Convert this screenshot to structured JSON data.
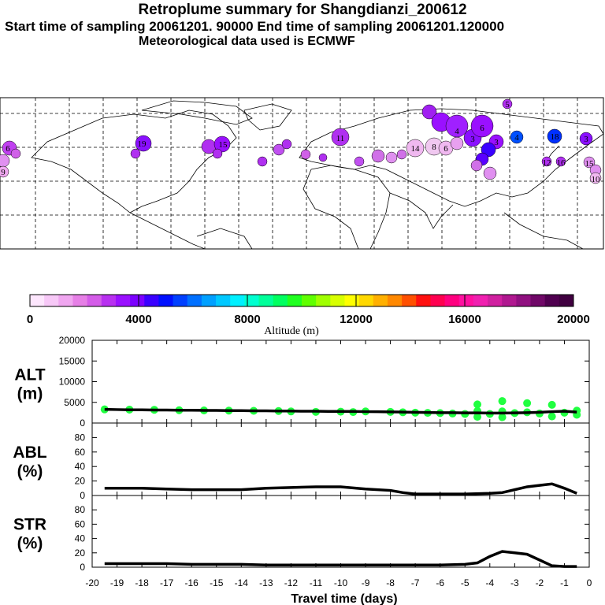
{
  "header": {
    "title": "Retroplume summary for Shangdianzi_200612",
    "line2": "Start time of sampling 20061201. 90000     End time of sampling 20061201.120000",
    "line3": "Meteorological data used is ECMWF"
  },
  "colorbar": {
    "labels": [
      "0",
      "4000",
      "8000",
      "12000",
      "16000",
      "20000"
    ],
    "title": "Altitude (m)",
    "colors": [
      "#fde6fd",
      "#f7c8f7",
      "#f0a6f0",
      "#e67fe6",
      "#d45ce8",
      "#b830f0",
      "#9a10ff",
      "#7c00ff",
      "#3a00ff",
      "#0010ff",
      "#0040ff",
      "#0070ff",
      "#00a0ff",
      "#00c8ff",
      "#00f0ff",
      "#00ffd0",
      "#00ff9a",
      "#00ff60",
      "#20ff20",
      "#60ff00",
      "#a0ff00",
      "#d8ff00",
      "#ffff00",
      "#ffd800",
      "#ffb000",
      "#ff8800",
      "#ff5000",
      "#ff1010",
      "#ff0050",
      "#ff0080",
      "#ff10a0",
      "#f020b0",
      "#d020a0",
      "#b01890",
      "#901080",
      "#700868",
      "#500050",
      "#400040"
    ]
  },
  "map": {
    "labels": [
      "6",
      "9",
      "19",
      "15",
      "11",
      "14",
      "8",
      "6",
      "4",
      "3",
      "6",
      "3",
      "4",
      "18",
      "3",
      "5",
      "12",
      "16",
      "15",
      "10"
    ]
  },
  "chart_data": [
    {
      "type": "scatter",
      "name": "ALT",
      "ylabel": "ALT",
      "yunit": "(m)",
      "ylim": [
        0,
        20000
      ],
      "yticks": [
        "20000",
        "15000",
        "10000",
        "5000",
        "0"
      ],
      "x": [
        -19.5,
        -19,
        -18.5,
        -18,
        -17.5,
        -17,
        -16.5,
        -16,
        -15.5,
        -15,
        -14.5,
        -14,
        -13.5,
        -13,
        -12.5,
        -12,
        -11.5,
        -11,
        -10.5,
        -10,
        -9.5,
        -9,
        -8.5,
        -8,
        -7.5,
        -7,
        -6.5,
        -6,
        -5.5,
        -5,
        -4.5,
        -4,
        -3.5,
        -3,
        -2.5,
        -2,
        -1.5,
        -1,
        -0.5
      ],
      "mean": [
        3300,
        3250,
        3200,
        3200,
        3150,
        3150,
        3100,
        3100,
        3050,
        3050,
        3000,
        3000,
        2950,
        2950,
        2900,
        2900,
        2850,
        2850,
        2800,
        2800,
        2800,
        2750,
        2750,
        2700,
        2650,
        2600,
        2550,
        2500,
        2500,
        2450,
        2450,
        2400,
        2400,
        2450,
        2500,
        2600,
        2750,
        2850,
        2650
      ],
      "points_x": [
        -19.5,
        -18.5,
        -17.5,
        -16.5,
        -15.5,
        -14.5,
        -13.5,
        -12.5,
        -12,
        -11,
        -10,
        -9.5,
        -9,
        -8,
        -7.5,
        -7,
        -6.5,
        -6,
        -5.5,
        -5,
        -4.5,
        -4.5,
        -4.5,
        -4,
        -3.5,
        -3.5,
        -3.5,
        -3,
        -2.5,
        -2.5,
        -2,
        -1.5,
        -1.5,
        -1,
        -0.5,
        -0.5
      ],
      "points_y": [
        3300,
        3250,
        3200,
        3100,
        3050,
        3000,
        2950,
        2900,
        2800,
        2700,
        2750,
        2650,
        2800,
        2700,
        2600,
        2500,
        2450,
        2400,
        2300,
        2200,
        4500,
        2900,
        1500,
        2200,
        5300,
        2800,
        1400,
        2400,
        4800,
        2600,
        2300,
        4400,
        1600,
        2500,
        3000,
        2000
      ],
      "point_color": "#20ff40",
      "xlim": [
        -20,
        0
      ]
    },
    {
      "type": "line",
      "name": "ABL",
      "ylabel": "ABL",
      "yunit": "(%)",
      "ylim": [
        0,
        100
      ],
      "yticks": [
        "80",
        "60",
        "40",
        "20",
        "0"
      ],
      "x": [
        -19.5,
        -19,
        -18,
        -17,
        -16,
        -15,
        -14,
        -13,
        -12,
        -11,
        -10,
        -9,
        -8,
        -7.5,
        -7,
        -6,
        -5,
        -4,
        -3.5,
        -3,
        -2.5,
        -2,
        -1.5,
        -1,
        -0.5
      ],
      "values": [
        10,
        10,
        10,
        9,
        8,
        8,
        8,
        10,
        11,
        12,
        12,
        9,
        7,
        4,
        2,
        2,
        2,
        3,
        4,
        8,
        12,
        14,
        16,
        10,
        3
      ],
      "xlim": [
        -20,
        0
      ]
    },
    {
      "type": "line",
      "name": "STR",
      "ylabel": "STR",
      "yunit": "(%)",
      "ylim": [
        0,
        100
      ],
      "yticks": [
        "80",
        "60",
        "40",
        "20",
        "0"
      ],
      "x": [
        -19.5,
        -19,
        -18,
        -17,
        -16,
        -15,
        -14,
        -13,
        -12,
        -11,
        -10,
        -9,
        -8,
        -7,
        -6,
        -5,
        -4.5,
        -4,
        -3.5,
        -3,
        -2.5,
        -2,
        -1.5,
        -1,
        -0.5
      ],
      "values": [
        5,
        5,
        5,
        5,
        4,
        4,
        4,
        3,
        3,
        3,
        3,
        3,
        3,
        3,
        3,
        4,
        6,
        15,
        22,
        20,
        18,
        10,
        2,
        1,
        1
      ],
      "xlim": [
        -20,
        0
      ]
    }
  ],
  "xaxis": {
    "label": "Travel time (days)",
    "ticks": [
      "-20",
      "-19",
      "-18",
      "-17",
      "-16",
      "-15",
      "-14",
      "-13",
      "-12",
      "-11",
      "-10",
      "-9",
      "-8",
      "-7",
      "-6",
      "-5",
      "-4",
      "-3",
      "-2",
      "-1",
      "0"
    ]
  }
}
